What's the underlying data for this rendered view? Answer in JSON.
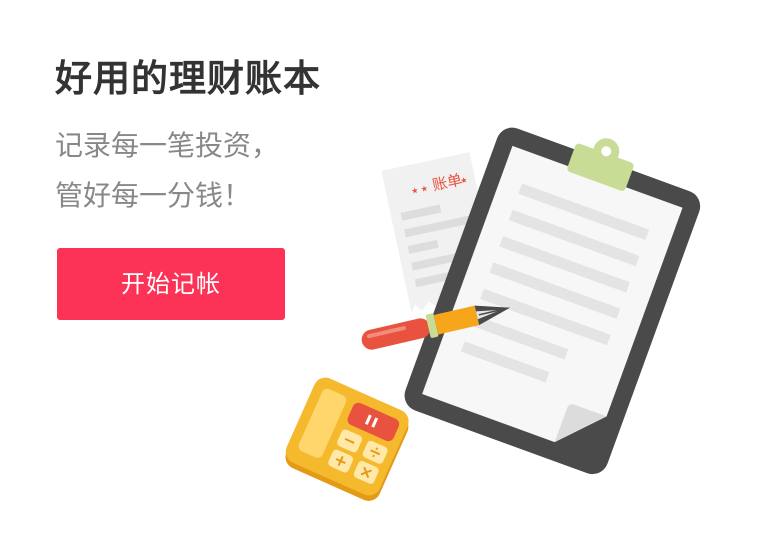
{
  "hero": {
    "headline": "好用的理财账本",
    "subline_1": "记录每一笔投资，",
    "subline_2": "管好每一分钱！",
    "cta_label": "开始记帐"
  },
  "illustration": {
    "receipt_title": "账单",
    "icons": [
      "receipt-icon",
      "clipboard-icon",
      "pen-icon",
      "calculator-icon"
    ]
  },
  "colors": {
    "accent": "#fc3356",
    "headline": "#333333",
    "subline": "#888888",
    "clipboard": "#4a4a4a",
    "clip": "#c8dc96",
    "calculator": "#f5b92d",
    "pen_orange": "#f7a61c",
    "pen_red": "#e9523f"
  }
}
